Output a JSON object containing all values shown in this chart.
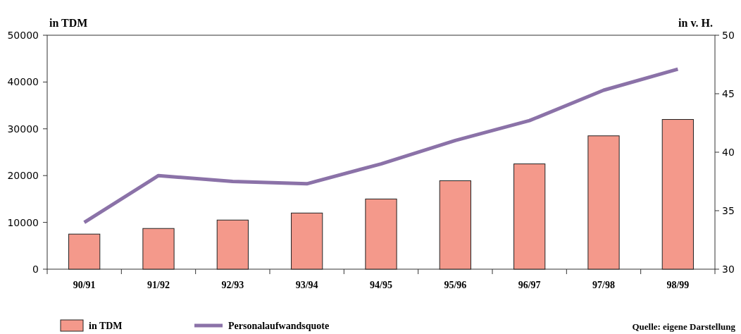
{
  "chart_data": {
    "type": "bar",
    "ylabel": "in TDM",
    "y2label": "in v. H.",
    "categories": [
      "90/91",
      "91/92",
      "92/93",
      "93/94",
      "94/95",
      "95/96",
      "96/97",
      "97/98",
      "98/99"
    ],
    "series": [
      {
        "name": "in TDM",
        "color": "#f4998b",
        "values": [
          7500,
          8700,
          10500,
          12000,
          15000,
          18900,
          22500,
          28500,
          32000
        ]
      },
      {
        "name": "Personalaufwandsquote",
        "type": "line",
        "axis": "y2",
        "color": "#8b72a8",
        "values": [
          34.0,
          38.0,
          37.5,
          37.3,
          39.0,
          41.0,
          42.7,
          45.3,
          47.1
        ]
      }
    ],
    "ylim": [
      0,
      50000
    ],
    "yticks": [
      0,
      10000,
      20000,
      30000,
      40000,
      50000
    ],
    "y2lim": [
      30,
      50
    ],
    "y2ticks": [
      30,
      35,
      40,
      45,
      50
    ],
    "legend": "bottom left",
    "grid": false,
    "annotations": [
      "Quelle: eigene Darstellung"
    ]
  }
}
